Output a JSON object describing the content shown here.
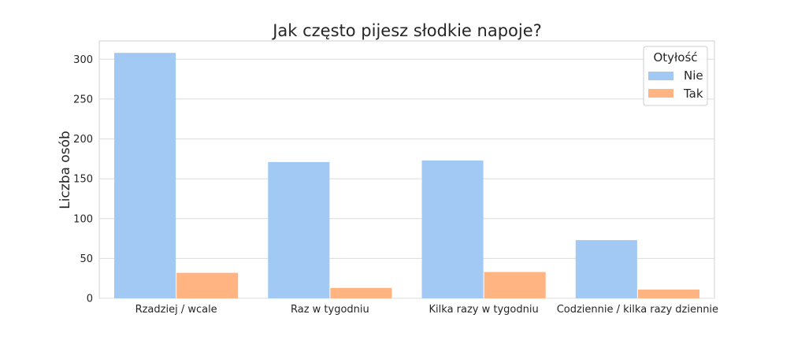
{
  "chart_data": {
    "type": "bar",
    "title": "Jak często pijesz słodkie napoje?",
    "xlabel": "",
    "ylabel": "Liczba osób",
    "categories": [
      "Rzadziej / wcale",
      "Raz w tygodniu",
      "Kilka razy w tygodniu",
      "Codziennie / kilka razy dziennie"
    ],
    "series": [
      {
        "name": "Nie",
        "values": [
          308,
          171,
          173,
          73
        ],
        "color": "#a1c9f4"
      },
      {
        "name": "Tak",
        "values": [
          32,
          13,
          33,
          11
        ],
        "color": "#ffb482"
      }
    ],
    "ylim": [
      0,
      323
    ],
    "yticks": [
      0,
      50,
      100,
      150,
      200,
      250,
      300
    ],
    "grid": true,
    "legend": {
      "title": "Otyłość",
      "placement": "top-right"
    }
  }
}
